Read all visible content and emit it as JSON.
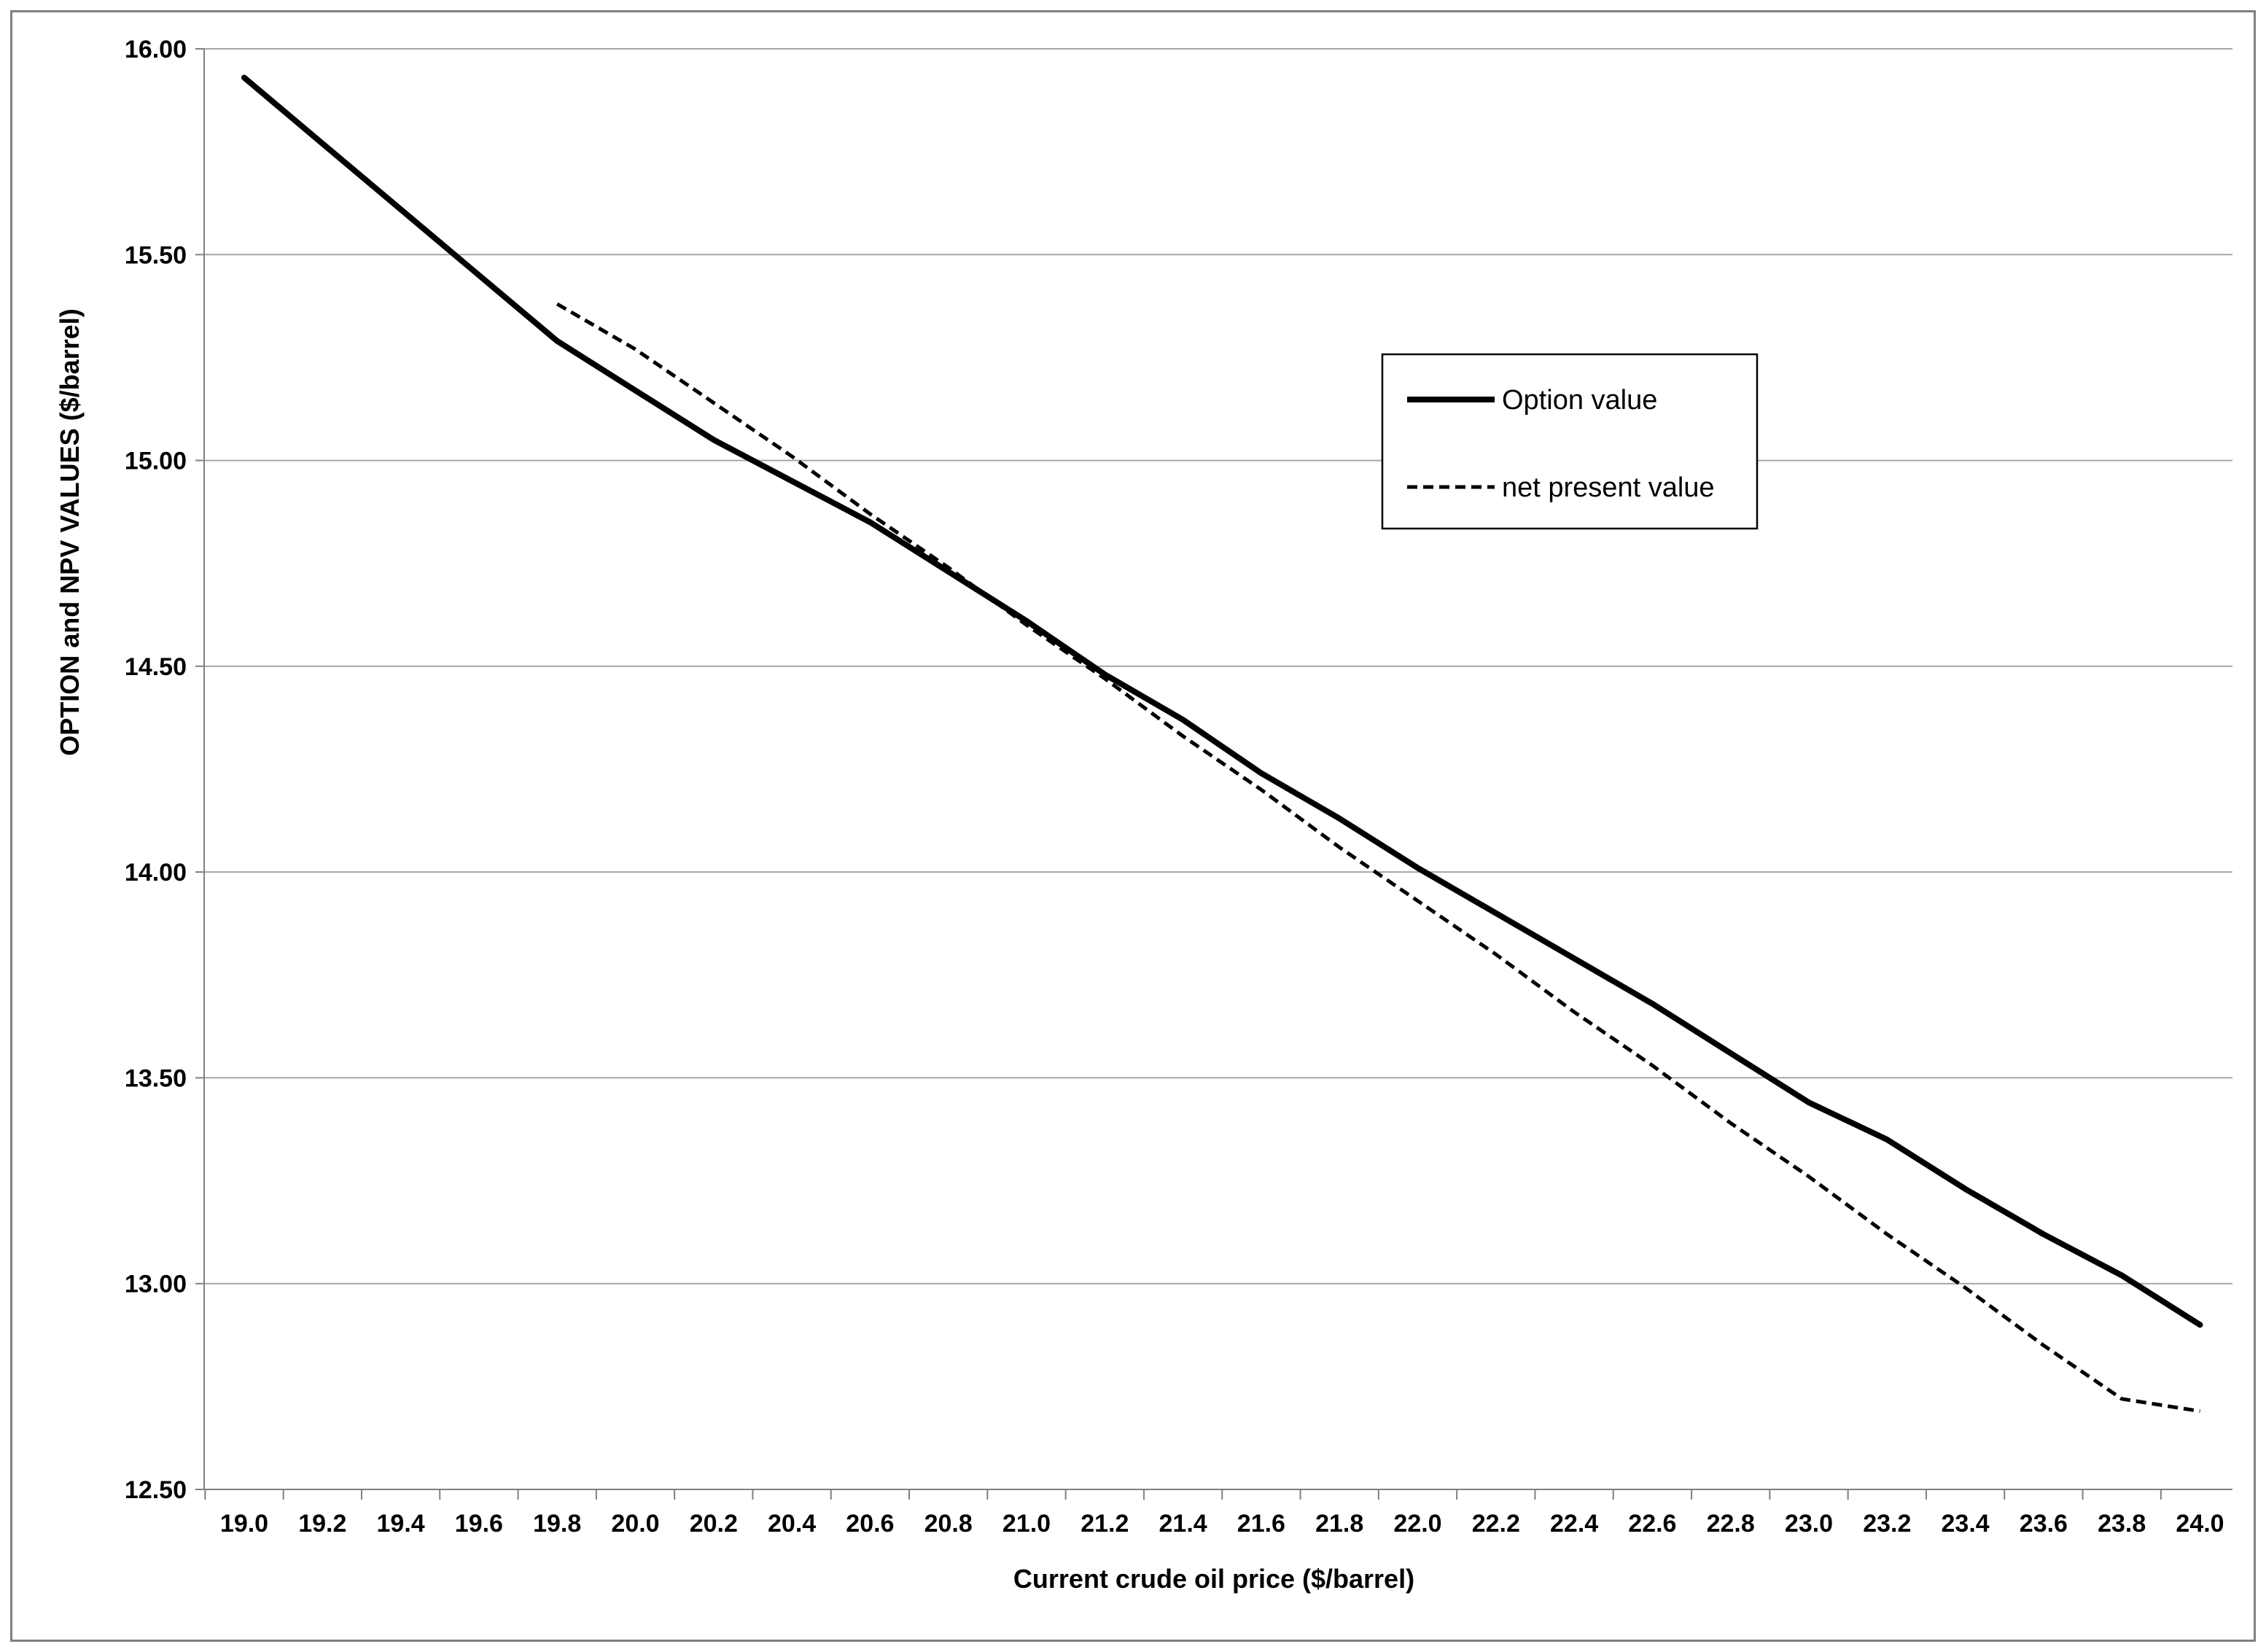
{
  "chart_data": {
    "type": "line",
    "xlabel": "Current crude oil price ($/barrel)",
    "ylabel": "OPTION and NPV VALUES ($/barrel)",
    "x_ticks": [
      "19.0",
      "19.2",
      "19.4",
      "19.6",
      "19.8",
      "20.0",
      "20.2",
      "20.4",
      "20.6",
      "20.8",
      "21.0",
      "21.2",
      "21.4",
      "21.6",
      "21.8",
      "22.0",
      "22.2",
      "22.4",
      "22.6",
      "22.8",
      "23.0",
      "23.2",
      "23.4",
      "23.6",
      "23.8",
      "24.0"
    ],
    "y_ticks": [
      "12.50",
      "13.00",
      "13.50",
      "14.00",
      "14.50",
      "15.00",
      "15.50",
      "16.00"
    ],
    "ylim": [
      12.5,
      16.0
    ],
    "grid": "horizontal",
    "legend_position": "upper-right",
    "series": [
      {
        "name": "Option value",
        "style": "solid",
        "color": "#000000",
        "x": [
          19.0,
          19.2,
          19.4,
          19.6,
          19.8,
          20.0,
          20.2,
          20.4,
          20.6,
          20.8,
          21.0,
          21.2,
          21.4,
          21.6,
          21.8,
          22.0,
          22.2,
          22.4,
          22.6,
          22.8,
          23.0,
          23.2,
          23.4,
          23.6,
          23.8,
          24.0
        ],
        "values": [
          15.93,
          15.77,
          15.61,
          15.45,
          15.29,
          15.17,
          15.05,
          14.95,
          14.85,
          14.73,
          14.61,
          14.48,
          14.37,
          14.24,
          14.13,
          14.01,
          13.9,
          13.79,
          13.68,
          13.56,
          13.44,
          13.35,
          13.23,
          13.12,
          13.02,
          12.9
        ]
      },
      {
        "name": "net present value",
        "style": "dashed",
        "color": "#000000",
        "x": [
          19.8,
          20.0,
          20.2,
          20.4,
          20.6,
          20.8,
          21.0,
          21.2,
          21.4,
          21.6,
          21.8,
          22.0,
          22.2,
          22.4,
          22.6,
          22.8,
          23.0,
          23.2,
          23.4,
          23.6,
          23.8,
          24.0
        ],
        "values": [
          15.38,
          15.27,
          15.14,
          15.01,
          14.87,
          14.74,
          14.6,
          14.47,
          14.33,
          14.2,
          14.06,
          13.93,
          13.8,
          13.66,
          13.53,
          13.39,
          13.26,
          13.12,
          12.99,
          12.85,
          12.72,
          12.69
        ]
      }
    ]
  }
}
